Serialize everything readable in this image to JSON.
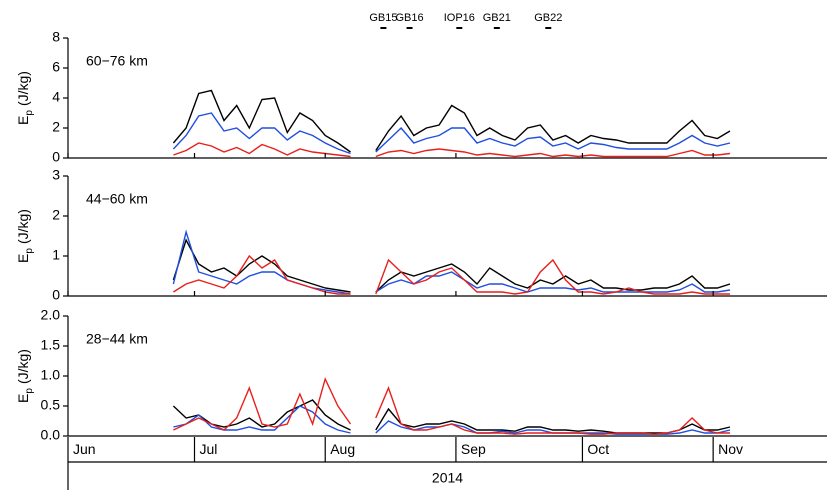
{
  "chart_data": [
    {
      "type": "line",
      "panel_label": "60−76 km",
      "ylabel": [
        "E",
        "p",
        "(J/kg)"
      ],
      "annotations": [
        {
          "text": "GB15",
          "x": 74.8
        },
        {
          "text": "GB16",
          "x": 81
        },
        {
          "text": "IOP16",
          "x": 92.8
        },
        {
          "text": "GB21",
          "x": 101.7
        },
        {
          "text": "GB22",
          "x": 113.9
        }
      ],
      "xlim": [
        0,
        180
      ],
      "ylim": [
        0,
        8
      ],
      "yticks": [
        0,
        2,
        4,
        6,
        8
      ],
      "x": [
        25,
        28,
        31,
        34,
        37,
        40,
        43,
        46,
        49,
        52,
        55,
        58,
        61,
        64,
        67,
        70,
        73,
        76,
        79,
        82,
        85,
        88,
        91,
        94,
        97,
        100,
        103,
        106,
        109,
        112,
        115,
        118,
        121,
        124,
        127,
        130,
        133,
        136,
        139,
        142,
        145,
        148,
        151,
        154,
        157
      ],
      "series": [
        {
          "color": "#000000",
          "values": [
            1,
            2,
            4.3,
            4.5,
            2.5,
            3.5,
            2,
            3.9,
            4,
            1.7,
            3,
            2.5,
            1.5,
            1,
            0.4,
            null,
            0.5,
            1.8,
            2.8,
            1.5,
            2,
            2.2,
            3.5,
            3,
            1.5,
            2,
            1.5,
            1.2,
            2,
            2.2,
            1.2,
            1.5,
            1,
            1.5,
            1.3,
            1.2,
            1,
            1,
            1,
            1,
            1.8,
            2.5,
            1.5,
            1.3,
            1.8
          ]
        },
        {
          "color": "#1f4fe0",
          "values": [
            0.6,
            1.5,
            2.8,
            3,
            1.8,
            2,
            1.3,
            2,
            2,
            1.2,
            1.8,
            1.5,
            1,
            0.6,
            0.3,
            null,
            0.4,
            1.2,
            2,
            1,
            1.3,
            1.5,
            2,
            2,
            1,
            1.3,
            1,
            0.8,
            1.3,
            1.4,
            0.8,
            1,
            0.6,
            1,
            0.9,
            0.7,
            0.6,
            0.6,
            0.6,
            0.6,
            1,
            1.5,
            1,
            0.8,
            1
          ]
        },
        {
          "color": "#e8201c",
          "values": [
            0.2,
            0.5,
            1,
            0.8,
            0.4,
            0.7,
            0.3,
            0.9,
            0.6,
            0.2,
            0.6,
            0.4,
            0.3,
            0.2,
            0.1,
            null,
            0.1,
            0.4,
            0.5,
            0.3,
            0.5,
            0.6,
            0.5,
            0.4,
            0.2,
            0.3,
            0.2,
            0.1,
            0.2,
            0.3,
            0.1,
            0.2,
            0.1,
            0.2,
            0.1,
            0.1,
            0.1,
            0.1,
            0.1,
            0.1,
            0.3,
            0.5,
            0.2,
            0.2,
            0.3
          ]
        }
      ]
    },
    {
      "type": "line",
      "panel_label": "44−60 km",
      "ylabel": [
        "E",
        "p",
        "(J/kg)"
      ],
      "xlim": [
        0,
        180
      ],
      "ylim": [
        0,
        3
      ],
      "yticks": [
        0,
        1,
        2,
        3
      ],
      "x": [
        25,
        28,
        31,
        34,
        37,
        40,
        43,
        46,
        49,
        52,
        55,
        58,
        61,
        64,
        67,
        70,
        73,
        76,
        79,
        82,
        85,
        88,
        91,
        94,
        97,
        100,
        103,
        106,
        109,
        112,
        115,
        118,
        121,
        124,
        127,
        130,
        133,
        136,
        139,
        142,
        145,
        148,
        151,
        154,
        157
      ],
      "series": [
        {
          "color": "#000000",
          "values": [
            0.4,
            1.4,
            0.8,
            0.6,
            0.7,
            0.5,
            0.8,
            1.0,
            0.8,
            0.5,
            0.4,
            0.3,
            0.2,
            0.15,
            0.1,
            null,
            0.1,
            0.4,
            0.6,
            0.5,
            0.6,
            0.7,
            0.8,
            0.6,
            0.3,
            0.7,
            0.5,
            0.3,
            0.2,
            0.4,
            0.3,
            0.5,
            0.3,
            0.4,
            0.2,
            0.2,
            0.15,
            0.15,
            0.2,
            0.2,
            0.3,
            0.5,
            0.2,
            0.2,
            0.3
          ]
        },
        {
          "color": "#1f4fe0",
          "values": [
            0.3,
            1.6,
            0.6,
            0.5,
            0.4,
            0.3,
            0.5,
            0.6,
            0.6,
            0.4,
            0.3,
            0.2,
            0.15,
            0.1,
            0.05,
            null,
            0.1,
            0.3,
            0.4,
            0.3,
            0.5,
            0.5,
            0.6,
            0.4,
            0.2,
            0.3,
            0.3,
            0.2,
            0.1,
            0.2,
            0.2,
            0.2,
            0.15,
            0.2,
            0.1,
            0.1,
            0.1,
            0.1,
            0.1,
            0.1,
            0.15,
            0.3,
            0.1,
            0.1,
            0.15
          ]
        },
        {
          "color": "#e8201c",
          "values": [
            0.1,
            0.3,
            0.4,
            0.3,
            0.2,
            0.5,
            1.0,
            0.7,
            0.9,
            0.4,
            0.3,
            0.2,
            0.1,
            0.05,
            0.05,
            null,
            0.05,
            0.9,
            0.6,
            0.3,
            0.4,
            0.6,
            0.7,
            0.4,
            0.1,
            0.1,
            0.1,
            0.05,
            0.1,
            0.6,
            0.9,
            0.4,
            0.1,
            0.1,
            0.05,
            0.1,
            0.2,
            0.1,
            0.05,
            0.05,
            0.05,
            0.1,
            0.05,
            0.05,
            0.05
          ]
        }
      ]
    },
    {
      "type": "line",
      "panel_label": "28−44 km",
      "ylabel": [
        "E",
        "p",
        "(J/kg)"
      ],
      "xlim": [
        0,
        180
      ],
      "ylim": [
        0,
        2
      ],
      "yticks": [
        {
          "value": 0,
          "label": "0.0"
        },
        {
          "value": 0.5,
          "label": "0.5"
        },
        {
          "value": 1,
          "label": "1.0"
        },
        {
          "value": 1.5,
          "label": "1.5"
        },
        {
          "value": 2,
          "label": "2.0"
        }
      ],
      "xticks": [
        {
          "value": 0,
          "label": "Jun"
        },
        {
          "value": 30,
          "label": "Jul"
        },
        {
          "value": 61,
          "label": "Aug"
        },
        {
          "value": 92,
          "label": "Sep"
        },
        {
          "value": 122,
          "label": "Oct"
        },
        {
          "value": 153,
          "label": "Nov"
        }
      ],
      "xlabel": "2014",
      "x": [
        25,
        28,
        31,
        34,
        37,
        40,
        43,
        46,
        49,
        52,
        55,
        58,
        61,
        64,
        67,
        70,
        73,
        76,
        79,
        82,
        85,
        88,
        91,
        94,
        97,
        100,
        103,
        106,
        109,
        112,
        115,
        118,
        121,
        124,
        127,
        130,
        133,
        136,
        139,
        142,
        145,
        148,
        151,
        154,
        157
      ],
      "series": [
        {
          "color": "#000000",
          "values": [
            0.5,
            0.3,
            0.35,
            0.2,
            0.15,
            0.2,
            0.3,
            0.15,
            0.2,
            0.4,
            0.5,
            0.6,
            0.35,
            0.2,
            0.1,
            null,
            0.1,
            0.45,
            0.2,
            0.15,
            0.2,
            0.2,
            0.25,
            0.2,
            0.1,
            0.1,
            0.1,
            0.08,
            0.15,
            0.15,
            0.1,
            0.1,
            0.08,
            0.1,
            0.08,
            0.05,
            0.05,
            0.05,
            0.05,
            0.05,
            0.1,
            0.2,
            0.1,
            0.1,
            0.15
          ]
        },
        {
          "color": "#1f4fe0",
          "values": [
            0.15,
            0.2,
            0.35,
            0.15,
            0.1,
            0.1,
            0.15,
            0.1,
            0.1,
            0.3,
            0.5,
            0.4,
            0.2,
            0.1,
            0.05,
            null,
            0.05,
            0.25,
            0.15,
            0.1,
            0.15,
            0.15,
            0.2,
            0.15,
            0.05,
            0.05,
            0.08,
            0.05,
            0.1,
            0.1,
            0.05,
            0.05,
            0.05,
            0.05,
            0.05,
            0.03,
            0.03,
            0.03,
            0.03,
            0.03,
            0.05,
            0.1,
            0.05,
            0.05,
            0.1
          ]
        },
        {
          "color": "#e8201c",
          "values": [
            0.1,
            0.2,
            0.3,
            0.2,
            0.1,
            0.3,
            0.8,
            0.2,
            0.15,
            0.2,
            0.7,
            0.2,
            0.95,
            0.5,
            0.2,
            null,
            0.3,
            0.8,
            0.2,
            0.1,
            0.1,
            0.15,
            0.2,
            0.1,
            0.05,
            0.05,
            0.05,
            0.03,
            0.05,
            0.05,
            0.05,
            0.05,
            0.05,
            0.03,
            0.03,
            0.05,
            0.05,
            0.05,
            0.03,
            0.05,
            0.1,
            0.3,
            0.1,
            0.05,
            0.05
          ]
        }
      ]
    }
  ]
}
